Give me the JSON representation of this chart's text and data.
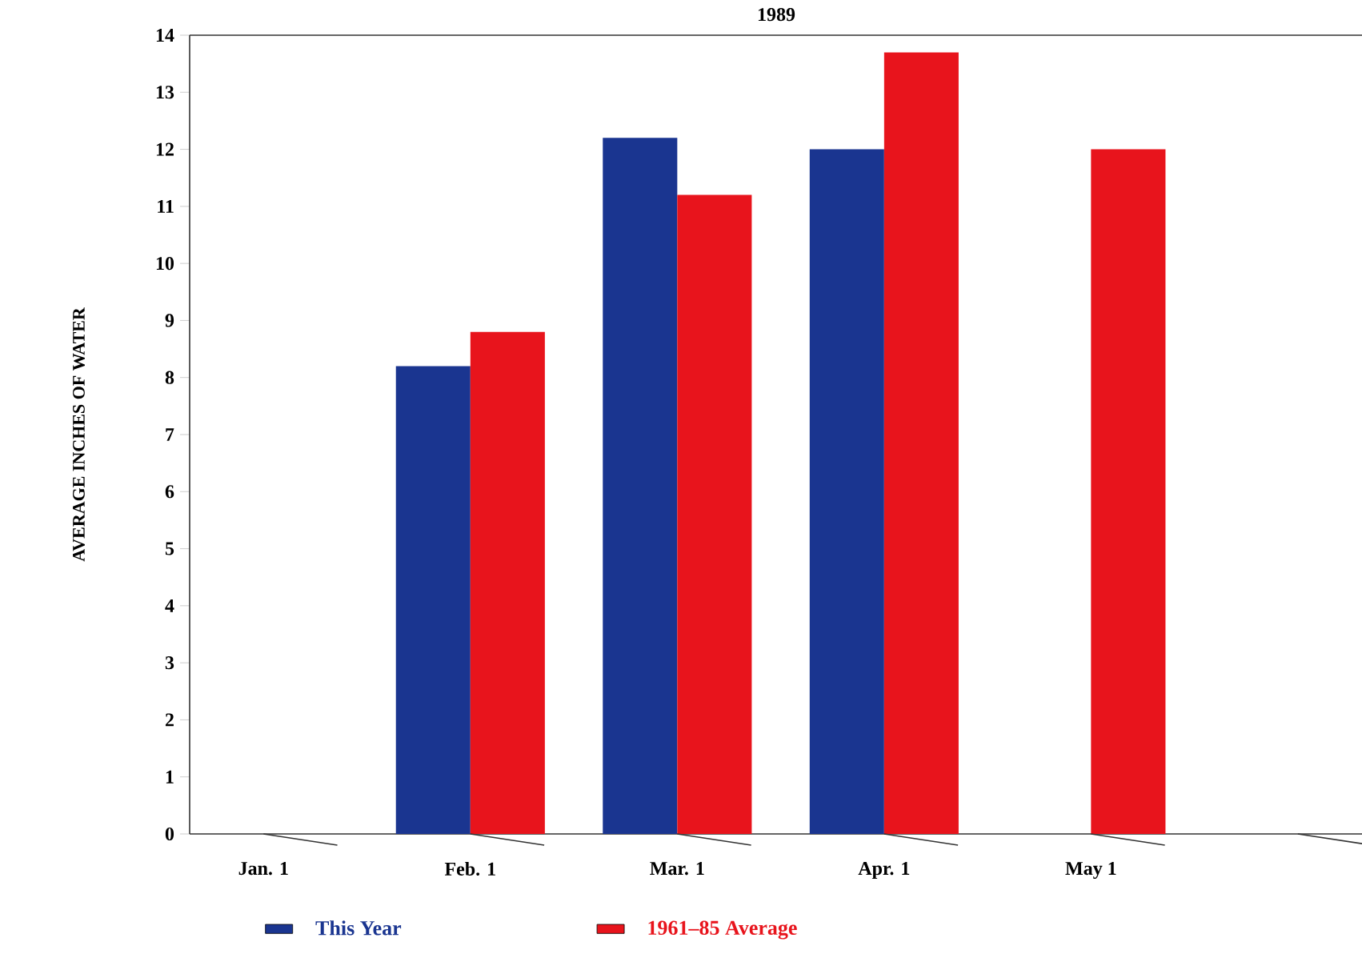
{
  "chart_data": {
    "type": "bar",
    "title": "1989",
    "ylabel": "AVERAGE INCHES OF WATER",
    "categories": [
      "Jan. 1",
      "Feb. 1",
      "Mar. 1",
      "Apr. 1",
      "May 1",
      null
    ],
    "series": [
      {
        "name": "This Year",
        "color": "#1a3590",
        "values": [
          null,
          8.2,
          12.2,
          12.0,
          null,
          null
        ]
      },
      {
        "name": "1961–85 Average",
        "color": "#e8141c",
        "values": [
          null,
          8.8,
          11.2,
          13.7,
          12.0,
          null
        ]
      }
    ],
    "ylim": [
      0,
      14
    ],
    "yticks": [
      0,
      1,
      2,
      3,
      4,
      5,
      6,
      7,
      8,
      9,
      10,
      11,
      12,
      13,
      14
    ],
    "grid": false,
    "legend": "bottom"
  }
}
